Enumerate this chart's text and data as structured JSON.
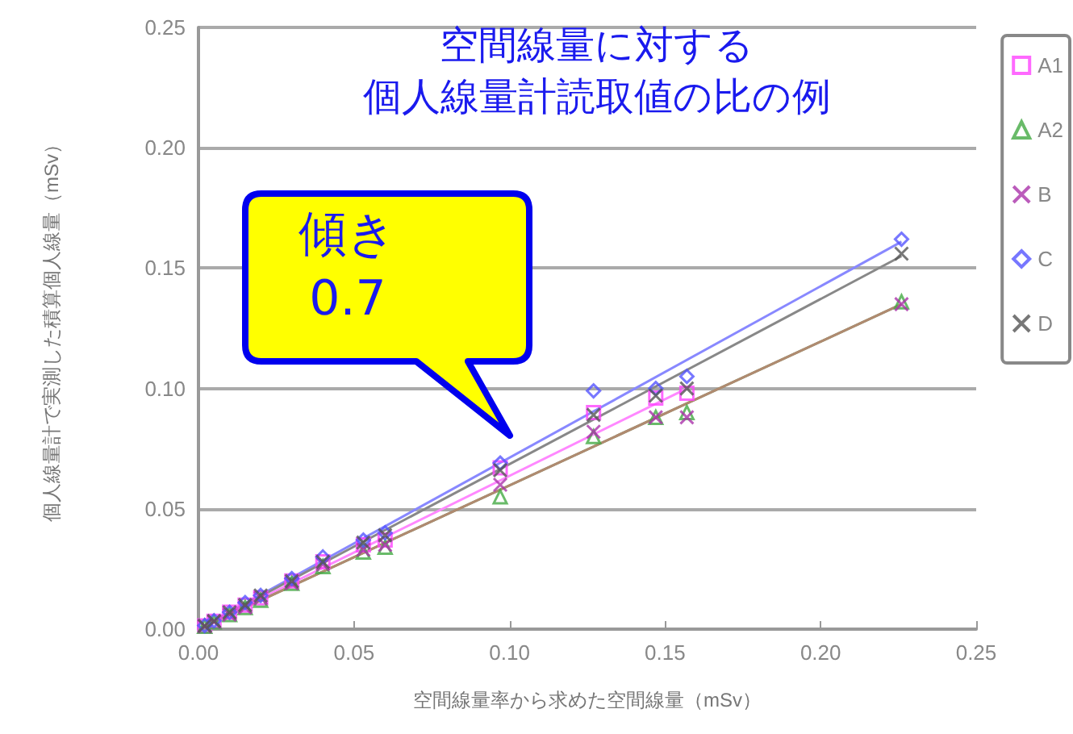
{
  "chart_data": {
    "type": "scatter",
    "title": "空間線量に対する",
    "subtitle": "個人線量計読取値の比の例",
    "xlabel": "空間線量率から求めた空間線量（mSv）",
    "ylabel": "個人線量計で実測した積算個人線量（mSv）",
    "annotations": [
      "傾き\n0.7"
    ],
    "x": [
      0.002,
      0.005,
      0.01,
      0.015,
      0.02,
      0.03,
      0.04,
      0.053,
      0.06,
      0.097,
      0.127,
      0.147,
      0.157,
      0.226
    ],
    "series": [
      {
        "name": "A1",
        "color": "#ff44ff",
        "marker": "square",
        "values": [
          0.0013,
          0.0033,
          0.007,
          0.01,
          0.013,
          0.02,
          0.028,
          0.035,
          0.037,
          0.067,
          0.09,
          0.096,
          0.098,
          null
        ]
      },
      {
        "name": "A2",
        "color": "#44aa44",
        "marker": "triangle",
        "values": [
          0.0012,
          0.003,
          0.006,
          0.009,
          0.012,
          0.019,
          0.026,
          0.032,
          0.034,
          0.055,
          0.08,
          0.088,
          0.09,
          0.136
        ]
      },
      {
        "name": "B",
        "color": "#aa33aa",
        "marker": "cross",
        "values": [
          0.0012,
          0.003,
          0.006,
          0.009,
          0.013,
          0.019,
          0.027,
          0.033,
          0.035,
          0.06,
          0.082,
          0.088,
          0.088,
          0.135
        ]
      },
      {
        "name": "C",
        "color": "#5555ff",
        "marker": "diamond",
        "values": [
          0.0015,
          0.0035,
          0.007,
          0.011,
          0.014,
          0.021,
          0.03,
          0.037,
          0.04,
          0.069,
          0.099,
          0.1,
          0.105,
          0.162
        ]
      },
      {
        "name": "D",
        "color": "#555555",
        "marker": "cross",
        "values": [
          0.0014,
          0.0034,
          0.007,
          0.01,
          0.014,
          0.02,
          0.028,
          0.036,
          0.039,
          0.066,
          0.089,
          0.097,
          0.1,
          0.156
        ]
      },
      {
        "type": "line",
        "color": "#ff88ff",
        "x": [
          0,
          0.157
        ],
        "values": [
          0,
          0.1
        ]
      },
      {
        "type": "line",
        "color": "#7a9a6a",
        "x": [
          0,
          0.226
        ],
        "values": [
          0,
          0.135
        ]
      },
      {
        "type": "line",
        "color": "#b08a70",
        "x": [
          0,
          0.226
        ],
        "values": [
          0,
          0.135
        ]
      },
      {
        "type": "line",
        "color": "#8888ff",
        "x": [
          0,
          0.226
        ],
        "values": [
          0,
          0.161
        ]
      },
      {
        "type": "line",
        "color": "#888888",
        "x": [
          0,
          0.226
        ],
        "values": [
          0,
          0.155
        ]
      }
    ],
    "xlim": [
      0,
      0.25
    ],
    "ylim": [
      0,
      0.25
    ],
    "xticks": [
      {
        "value": 0,
        "label": "0.00"
      },
      {
        "value": 0.05,
        "label": "0.05"
      },
      {
        "value": 0.1,
        "label": "0.10"
      },
      {
        "value": 0.15,
        "label": "0.15"
      },
      {
        "value": 0.2,
        "label": "0.20"
      },
      {
        "value": 0.25,
        "label": "0.25"
      }
    ],
    "yticks": [
      {
        "value": 0,
        "label": "0.00"
      },
      {
        "value": 0.05,
        "label": "0.05"
      },
      {
        "value": 0.1,
        "label": "0.10"
      },
      {
        "value": 0.15,
        "label": "0.15"
      },
      {
        "value": 0.2,
        "label": "0.20"
      },
      {
        "value": 0.25,
        "label": "0.25"
      }
    ],
    "grid": "y",
    "legend": "right"
  }
}
